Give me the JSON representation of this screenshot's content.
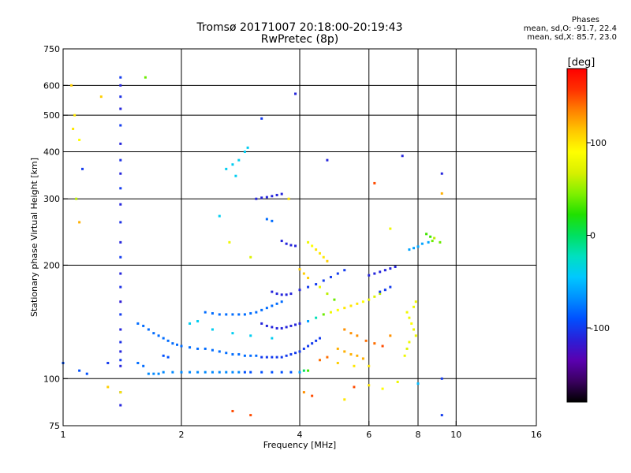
{
  "header": {
    "title_line1": "Tromsø 20171007 20:18:00-20:19:43",
    "title_line2": "RwPretec (8p)",
    "phases_heading": "Phases",
    "phases_o": "mean, sd,O: -91.7, 22.4",
    "phases_x": "mean, sd,X: 85.7, 23.0"
  },
  "colorbar": {
    "unit_label": "[deg]",
    "range": [
      -180,
      180
    ],
    "ticks": [
      {
        "value": 100,
        "label": "100"
      },
      {
        "value": 0,
        "label": "0"
      },
      {
        "value": -100,
        "label": "-100"
      }
    ],
    "colors": [
      "#000000",
      "#3a0060",
      "#5a00b0",
      "#2a20d8",
      "#0050ff",
      "#0090ff",
      "#00c8ff",
      "#00e0c0",
      "#00e060",
      "#20e000",
      "#80f000",
      "#d8f000",
      "#ffff00",
      "#ffc800",
      "#ff8000",
      "#ff3000",
      "#ff0000"
    ]
  },
  "chart_data": {
    "type": "scatter",
    "title": "Tromsø 20171007 20:18:00-20:19:43",
    "subtitle": "RwPretec (8p)",
    "xlabel": "Frequency [MHz]",
    "ylabel": "Stationary phase Virtual Height [km]",
    "x_scale": "log",
    "y_scale": "log",
    "xlim": [
      1,
      16
    ],
    "ylim": [
      75,
      750
    ],
    "grid": true,
    "x_ticks": [
      {
        "value": 1,
        "label": "1"
      },
      {
        "value": 2,
        "label": "2"
      },
      {
        "value": 4,
        "label": "4"
      },
      {
        "value": 6,
        "label": "6"
      },
      {
        "value": 8,
        "label": "8"
      },
      {
        "value": 10,
        "label": "10"
      },
      {
        "value": 16,
        "label": "16"
      }
    ],
    "y_ticks": [
      {
        "value": 75,
        "label": "75"
      },
      {
        "value": 100,
        "label": "100"
      },
      {
        "value": 200,
        "label": "200"
      },
      {
        "value": 300,
        "label": "300"
      },
      {
        "value": 400,
        "label": "400"
      },
      {
        "value": 500,
        "label": "500"
      },
      {
        "value": 600,
        "label": "600"
      },
      {
        "value": 750,
        "label": "750"
      }
    ],
    "points": [
      [
        1.4,
        108,
        -110
      ],
      [
        1.4,
        112,
        -100
      ],
      [
        1.4,
        118,
        -110
      ],
      [
        1.4,
        125,
        -105
      ],
      [
        1.4,
        135,
        -110
      ],
      [
        1.4,
        148,
        -100
      ],
      [
        1.4,
        160,
        -115
      ],
      [
        1.4,
        175,
        -105
      ],
      [
        1.4,
        190,
        -110
      ],
      [
        1.4,
        210,
        -100
      ],
      [
        1.4,
        230,
        -110
      ],
      [
        1.4,
        260,
        -105
      ],
      [
        1.4,
        290,
        -110
      ],
      [
        1.4,
        320,
        -100
      ],
      [
        1.4,
        350,
        -110
      ],
      [
        1.4,
        380,
        -105
      ],
      [
        1.4,
        420,
        -110
      ],
      [
        1.4,
        470,
        -100
      ],
      [
        1.4,
        520,
        -110
      ],
      [
        1.4,
        560,
        -105
      ],
      [
        1.4,
        600,
        -110
      ],
      [
        1.4,
        630,
        -100
      ],
      [
        1.4,
        85,
        -110
      ],
      [
        1.4,
        92,
        -100
      ],
      [
        1.05,
        600,
        110
      ],
      [
        1.07,
        500,
        100
      ],
      [
        1.1,
        430,
        90
      ],
      [
        1.12,
        360,
        -100
      ],
      [
        1.08,
        300,
        60
      ],
      [
        1.1,
        260,
        120
      ],
      [
        1.62,
        630,
        40
      ],
      [
        1.25,
        560,
        110
      ],
      [
        1.06,
        460,
        100
      ],
      [
        1.3,
        110,
        -100
      ],
      [
        1.55,
        140,
        -80
      ],
      [
        1.6,
        138,
        -80
      ],
      [
        1.65,
        135,
        -80
      ],
      [
        1.7,
        132,
        -80
      ],
      [
        1.75,
        130,
        -80
      ],
      [
        1.8,
        128,
        -80
      ],
      [
        1.85,
        126,
        -80
      ],
      [
        1.9,
        124,
        -80
      ],
      [
        1.95,
        123,
        -80
      ],
      [
        2.0,
        122,
        -80
      ],
      [
        2.1,
        121,
        -80
      ],
      [
        2.2,
        120,
        -80
      ],
      [
        2.3,
        120,
        -80
      ],
      [
        2.4,
        119,
        -80
      ],
      [
        2.5,
        118,
        -80
      ],
      [
        2.6,
        117,
        -80
      ],
      [
        2.7,
        116,
        -80
      ],
      [
        2.8,
        116,
        -80
      ],
      [
        2.9,
        115,
        -80
      ],
      [
        3.0,
        115,
        -80
      ],
      [
        3.1,
        115,
        -80
      ],
      [
        3.2,
        114,
        -100
      ],
      [
        3.3,
        114,
        -100
      ],
      [
        3.4,
        114,
        -100
      ],
      [
        3.5,
        114,
        -100
      ],
      [
        3.6,
        114,
        -100
      ],
      [
        3.7,
        115,
        -100
      ],
      [
        3.8,
        116,
        -100
      ],
      [
        3.9,
        117,
        -100
      ],
      [
        4.0,
        118,
        -100
      ],
      [
        4.1,
        120,
        -100
      ],
      [
        4.2,
        122,
        -100
      ],
      [
        4.3,
        124,
        -100
      ],
      [
        4.4,
        126,
        -100
      ],
      [
        4.5,
        128,
        -100
      ],
      [
        1.65,
        103,
        -70
      ],
      [
        1.7,
        103,
        -70
      ],
      [
        1.75,
        103,
        -70
      ],
      [
        1.8,
        104,
        -70
      ],
      [
        1.9,
        104,
        -70
      ],
      [
        2.0,
        104,
        -70
      ],
      [
        2.1,
        104,
        -70
      ],
      [
        2.2,
        104,
        -70
      ],
      [
        2.3,
        104,
        -70
      ],
      [
        2.4,
        104,
        -70
      ],
      [
        2.5,
        104,
        -70
      ],
      [
        2.6,
        104,
        -70
      ],
      [
        2.7,
        104,
        -70
      ],
      [
        2.8,
        104,
        -70
      ],
      [
        2.9,
        104,
        -90
      ],
      [
        3.0,
        104,
        -90
      ],
      [
        3.2,
        104,
        -90
      ],
      [
        3.4,
        104,
        -90
      ],
      [
        3.6,
        104,
        -90
      ],
      [
        3.8,
        104,
        -90
      ],
      [
        4.0,
        104,
        -60
      ],
      [
        4.1,
        105,
        0
      ],
      [
        4.2,
        105,
        30
      ],
      [
        2.3,
        150,
        -80
      ],
      [
        2.4,
        149,
        -80
      ],
      [
        2.5,
        148,
        -80
      ],
      [
        2.6,
        148,
        -80
      ],
      [
        2.7,
        148,
        -80
      ],
      [
        2.8,
        148,
        -80
      ],
      [
        2.9,
        148,
        -80
      ],
      [
        3.0,
        149,
        -80
      ],
      [
        3.1,
        150,
        -80
      ],
      [
        3.2,
        152,
        -80
      ],
      [
        3.3,
        154,
        -80
      ],
      [
        3.4,
        156,
        -80
      ],
      [
        3.5,
        158,
        -80
      ],
      [
        3.6,
        160,
        -80
      ],
      [
        3.2,
        140,
        -110
      ],
      [
        3.3,
        138,
        -110
      ],
      [
        3.4,
        137,
        -110
      ],
      [
        3.5,
        136,
        -110
      ],
      [
        3.6,
        136,
        -110
      ],
      [
        3.7,
        137,
        -110
      ],
      [
        3.8,
        138,
        -110
      ],
      [
        3.9,
        139,
        -110
      ],
      [
        4.0,
        140,
        -110
      ],
      [
        4.2,
        142,
        -60
      ],
      [
        4.4,
        145,
        -20
      ],
      [
        4.6,
        148,
        40
      ],
      [
        4.8,
        150,
        80
      ],
      [
        5.0,
        152,
        90
      ],
      [
        5.2,
        154,
        100
      ],
      [
        5.4,
        156,
        100
      ],
      [
        5.6,
        158,
        100
      ],
      [
        5.8,
        160,
        90
      ],
      [
        6.0,
        162,
        80
      ],
      [
        6.2,
        165,
        70
      ],
      [
        6.4,
        168,
        60
      ],
      [
        3.4,
        170,
        -110
      ],
      [
        3.5,
        168,
        -110
      ],
      [
        3.6,
        167,
        -110
      ],
      [
        3.7,
        167,
        -110
      ],
      [
        3.8,
        168,
        -110
      ],
      [
        4.0,
        172,
        -110
      ],
      [
        4.2,
        175,
        -100
      ],
      [
        4.4,
        178,
        -100
      ],
      [
        4.6,
        182,
        -100
      ],
      [
        4.8,
        186,
        -100
      ],
      [
        5.0,
        190,
        -100
      ],
      [
        5.2,
        194,
        -100
      ],
      [
        1.8,
        115,
        -90
      ],
      [
        1.85,
        114,
        -90
      ],
      [
        2.1,
        140,
        -40
      ],
      [
        2.2,
        142,
        -40
      ],
      [
        2.4,
        135,
        -40
      ],
      [
        2.7,
        132,
        -40
      ],
      [
        3.0,
        130,
        -40
      ],
      [
        3.4,
        128,
        -40
      ],
      [
        1.55,
        110,
        -80
      ],
      [
        1.6,
        108,
        -80
      ],
      [
        2.6,
        360,
        -40
      ],
      [
        2.7,
        370,
        -40
      ],
      [
        2.8,
        380,
        -40
      ],
      [
        2.9,
        400,
        -40
      ],
      [
        2.95,
        410,
        -40
      ],
      [
        2.75,
        345,
        -40
      ],
      [
        3.1,
        300,
        -110
      ],
      [
        3.2,
        302,
        -110
      ],
      [
        3.3,
        303,
        -110
      ],
      [
        3.4,
        305,
        -110
      ],
      [
        3.5,
        307,
        -110
      ],
      [
        3.6,
        309,
        -110
      ],
      [
        3.3,
        265,
        -80
      ],
      [
        3.4,
        262,
        -80
      ],
      [
        3.6,
        232,
        -110
      ],
      [
        3.7,
        228,
        -110
      ],
      [
        3.8,
        226,
        -110
      ],
      [
        3.9,
        225,
        -110
      ],
      [
        4.2,
        230,
        80
      ],
      [
        4.3,
        225,
        90
      ],
      [
        4.4,
        220,
        100
      ],
      [
        4.5,
        215,
        100
      ],
      [
        4.6,
        210,
        100
      ],
      [
        4.7,
        205,
        110
      ],
      [
        4.0,
        195,
        110
      ],
      [
        4.1,
        190,
        110
      ],
      [
        4.2,
        185,
        110
      ],
      [
        4.5,
        175,
        80
      ],
      [
        4.7,
        168,
        60
      ],
      [
        4.9,
        162,
        40
      ],
      [
        5.0,
        120,
        120
      ],
      [
        5.2,
        118,
        120
      ],
      [
        5.4,
        116,
        120
      ],
      [
        5.6,
        115,
        120
      ],
      [
        5.8,
        113,
        120
      ],
      [
        5.0,
        110,
        110
      ],
      [
        5.5,
        108,
        100
      ],
      [
        6.0,
        108,
        100
      ],
      [
        4.5,
        112,
        140
      ],
      [
        4.7,
        114,
        140
      ],
      [
        5.2,
        135,
        130
      ],
      [
        5.4,
        132,
        130
      ],
      [
        5.6,
        130,
        130
      ],
      [
        5.9,
        126,
        140
      ],
      [
        6.2,
        124,
        140
      ],
      [
        6.5,
        122,
        150
      ],
      [
        6.8,
        130,
        130
      ],
      [
        6.0,
        188,
        -110
      ],
      [
        6.2,
        190,
        -110
      ],
      [
        6.4,
        192,
        -110
      ],
      [
        6.6,
        194,
        -110
      ],
      [
        6.8,
        196,
        -110
      ],
      [
        7.0,
        198,
        -110
      ],
      [
        6.4,
        170,
        -100
      ],
      [
        6.6,
        172,
        -100
      ],
      [
        6.8,
        175,
        -100
      ],
      [
        7.6,
        220,
        -60
      ],
      [
        7.8,
        222,
        -60
      ],
      [
        8.0,
        224,
        -60
      ],
      [
        8.2,
        228,
        -60
      ],
      [
        8.5,
        230,
        -60
      ],
      [
        8.6,
        238,
        30
      ],
      [
        8.7,
        232,
        40
      ],
      [
        8.8,
        236,
        60
      ],
      [
        8.4,
        242,
        30
      ],
      [
        7.5,
        150,
        80
      ],
      [
        7.6,
        145,
        80
      ],
      [
        7.7,
        140,
        90
      ],
      [
        7.8,
        135,
        80
      ],
      [
        7.9,
        130,
        80
      ],
      [
        7.6,
        125,
        80
      ],
      [
        7.5,
        120,
        70
      ],
      [
        7.4,
        115,
        80
      ],
      [
        7.8,
        155,
        80
      ],
      [
        7.9,
        160,
        80
      ],
      [
        9.2,
        350,
        -110
      ],
      [
        9.2,
        310,
        120
      ],
      [
        9.1,
        230,
        40
      ],
      [
        9.2,
        100,
        -100
      ],
      [
        9.2,
        80,
        -100
      ],
      [
        7.3,
        390,
        -110
      ],
      [
        1.1,
        105,
        -90
      ],
      [
        1.15,
        103,
        -90
      ],
      [
        1.0,
        110,
        -90
      ],
      [
        1.3,
        95,
        110
      ],
      [
        1.4,
        92,
        100
      ],
      [
        2.7,
        82,
        150
      ],
      [
        3.0,
        80,
        150
      ],
      [
        4.1,
        92,
        130
      ],
      [
        4.3,
        90,
        150
      ],
      [
        5.2,
        88,
        100
      ],
      [
        5.5,
        95,
        150
      ],
      [
        6.0,
        96,
        100
      ],
      [
        6.5,
        94,
        90
      ],
      [
        7.1,
        98,
        80
      ],
      [
        8.0,
        97,
        -50
      ],
      [
        3.2,
        490,
        -100
      ],
      [
        3.9,
        570,
        -110
      ],
      [
        4.7,
        380,
        -110
      ],
      [
        3.75,
        300,
        100
      ],
      [
        2.5,
        270,
        -40
      ],
      [
        2.65,
        230,
        80
      ],
      [
        3.0,
        210,
        70
      ],
      [
        6.8,
        250,
        80
      ],
      [
        6.2,
        330,
        150
      ]
    ]
  }
}
